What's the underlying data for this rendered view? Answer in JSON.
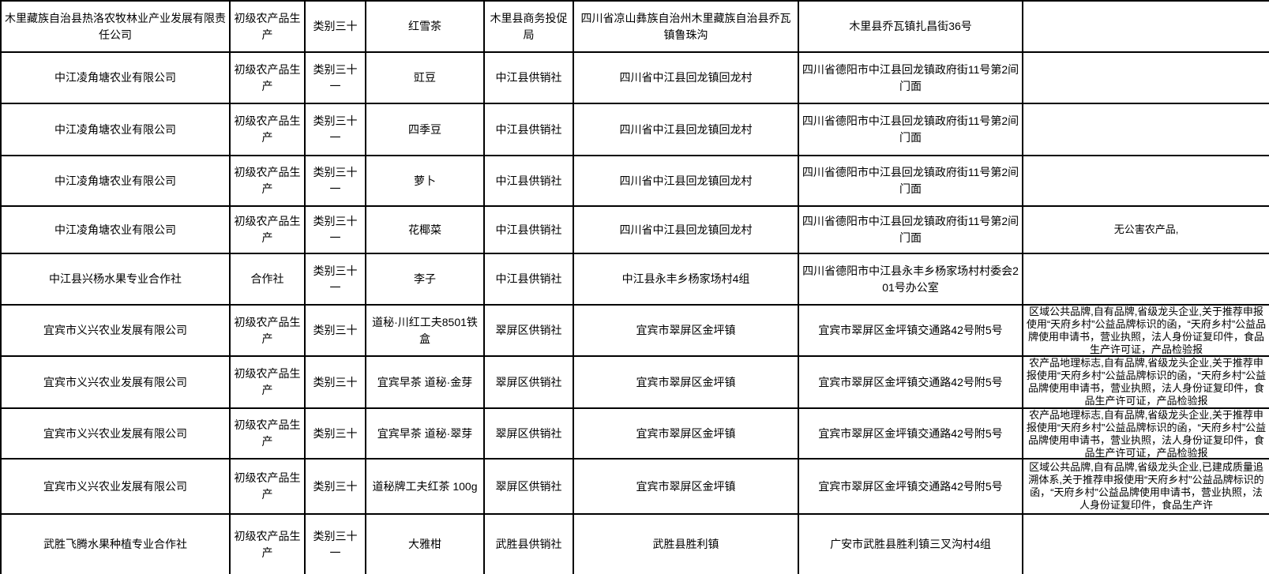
{
  "table": {
    "rows": [
      {
        "cells": [
          "木里藏族自治县热洛农牧林业产业发展有限责任公司",
          "初级农产品生产",
          "类别三十",
          "红雪茶",
          "木里县商务投促局",
          "四川省凉山彝族自治州木里藏族自治县乔瓦镇鲁珠沟",
          "木里县乔瓦镇扎昌街36号",
          ""
        ]
      },
      {
        "cells": [
          "中江凌角塘农业有限公司",
          "初级农产品生产",
          "类别三十一",
          "豇豆",
          "中江县供销社",
          "四川省中江县回龙镇回龙村",
          "四川省德阳市中江县回龙镇政府街11号第2间门面",
          ""
        ]
      },
      {
        "cells": [
          "中江凌角塘农业有限公司",
          "初级农产品生产",
          "类别三十一",
          "四季豆",
          "中江县供销社",
          "四川省中江县回龙镇回龙村",
          "四川省德阳市中江县回龙镇政府街11号第2间门面",
          ""
        ]
      },
      {
        "cells": [
          "中江凌角塘农业有限公司",
          "初级农产品生产",
          "类别三十一",
          "萝卜",
          "中江县供销社",
          "四川省中江县回龙镇回龙村",
          "四川省德阳市中江县回龙镇政府街11号第2间门面",
          ""
        ]
      },
      {
        "cells": [
          "中江凌角塘农业有限公司",
          "初级农产品生产",
          "类别三十一",
          "花椰菜",
          "中江县供销社",
          "四川省中江县回龙镇回龙村",
          "四川省德阳市中江县回龙镇政府街11号第2间门面",
          "无公害农产品,"
        ]
      },
      {
        "cells": [
          "中江县兴杨水果专业合作社",
          "合作社",
          "类别三十一",
          "李子",
          "中江县供销社",
          "中江县永丰乡杨家场村4组",
          "四川省德阳市中江县永丰乡杨家场村村委会201号办公室",
          ""
        ]
      },
      {
        "cells": [
          "宜宾市义兴农业发展有限公司",
          "初级农产品生产",
          "类别三十",
          "道秘·川红工夫8501铁盒",
          "翠屏区供销社",
          "宜宾市翠屏区金坪镇",
          "宜宾市翠屏区金坪镇交通路42号附5号",
          "区域公共品牌,自有品牌,省级龙头企业,关于推荐申报使用“天府乡村”公益品牌标识的函，“天府乡村”公益品牌使用申请书，营业执照，法人身份证复印件，食品生产许可证，产品检验报"
        ]
      },
      {
        "cells": [
          "宜宾市义兴农业发展有限公司",
          "初级农产品生产",
          "类别三十",
          "宜宾早茶 道秘·金芽",
          "翠屏区供销社",
          "宜宾市翠屏区金坪镇",
          "宜宾市翠屏区金坪镇交通路42号附5号",
          "农产品地理标志,自有品牌,省级龙头企业,关于推荐申报使用“天府乡村”公益品牌标识的函，“天府乡村”公益品牌使用申请书，营业执照，法人身份证复印件，食品生产许可证，产品检验报"
        ]
      },
      {
        "cells": [
          "宜宾市义兴农业发展有限公司",
          "初级农产品生产",
          "类别三十",
          "宜宾早茶 道秘·翠芽",
          "翠屏区供销社",
          "宜宾市翠屏区金坪镇",
          "宜宾市翠屏区金坪镇交通路42号附5号",
          "农产品地理标志,自有品牌,省级龙头企业,关于推荐申报使用“天府乡村”公益品牌标识的函，“天府乡村”公益品牌使用申请书，营业执照，法人身份证复印件，食品生产许可证，产品检验报"
        ]
      },
      {
        "cells": [
          "宜宾市义兴农业发展有限公司",
          "初级农产品生产",
          "类别三十",
          "道秘牌工夫红茶  100g",
          "翠屏区供销社",
          "宜宾市翠屏区金坪镇",
          "宜宾市翠屏区金坪镇交通路42号附5号",
          "区域公共品牌,自有品牌,省级龙头企业,已建成质量追溯体系,关于推荐申报使用“天府乡村”公益品牌标识的函，“天府乡村”公益品牌使用申请书，营业执照，法人身份证复印件，食品生产许"
        ]
      },
      {
        "cells": [
          "武胜飞腾水果种植专业合作社",
          "初级农产品生产",
          "类别三十一",
          "大雅柑",
          "武胜县供销社",
          "武胜县胜利镇",
          "广安市武胜县胜利镇三叉沟村4组",
          ""
        ]
      }
    ]
  }
}
